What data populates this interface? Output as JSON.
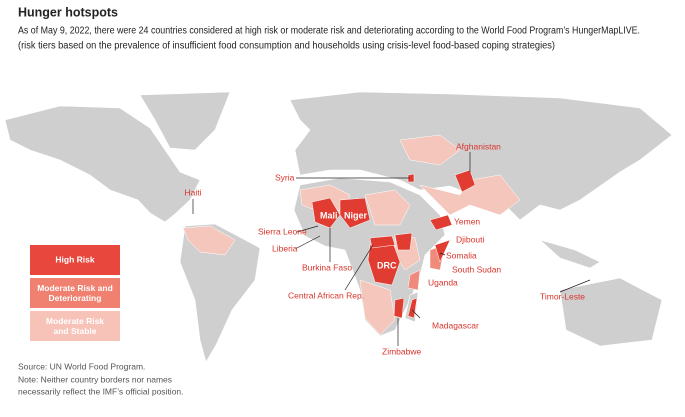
{
  "header": {
    "title": "Hunger hotspots",
    "subtitle": [
      "As of May 9, 2022, there were 24 countries considered at high risk or moderate risk and deteriorating according to the World Food Program’s HungerMapLIVE.",
      "(risk tiers based on the prevalence of insufficient food consumption and households using crisis-level food-based coping strategies)"
    ]
  },
  "legend": {
    "items": [
      "High Risk",
      "Moderate Risk and Deteriorating",
      "Moderate Risk and Stable"
    ]
  },
  "labels": [
    "Afghanistan",
    "Syria",
    "Haiti",
    "Mali",
    "Niger",
    "Yemen",
    "Sierra Leone",
    "Djibouti",
    "Liberia",
    "Somalia",
    "DRC",
    "South Sudan",
    "Burkina Faso",
    "Uganda",
    "Central African Rep.",
    "Timor-Leste",
    "Madagascar",
    "Zimbabwe"
  ],
  "footer": [
    "Source: UN World Food Program.",
    "Note: Neither country borders nor names",
    "necessarily reflect the IMF’s official position."
  ]
}
